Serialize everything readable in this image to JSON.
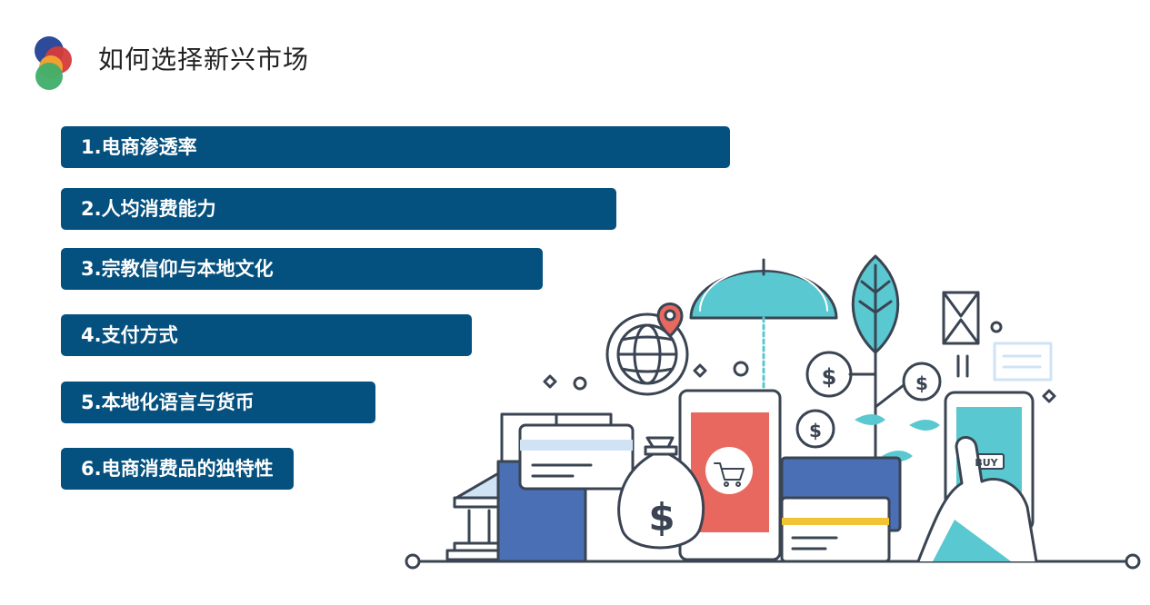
{
  "header": {
    "title": "如何选择新兴市场"
  },
  "items": [
    {
      "label": "1.电商渗透率"
    },
    {
      "label": "2.人均消费能力"
    },
    {
      "label": "3.宗教信仰与本地文化"
    },
    {
      "label": "4.支付方式"
    },
    {
      "label": "5.本地化语言与货币"
    },
    {
      "label": "6.电商消费品的独特性"
    }
  ],
  "illustration": {
    "phone_button": "BUY",
    "currency_symbol": "$",
    "icons": [
      "globe-icon",
      "map-pin-icon",
      "umbrella-icon",
      "leaf-icon",
      "envelope-icon",
      "money-bag-icon",
      "shopping-cart-icon",
      "bank-icon",
      "credit-card-icon",
      "smartphone-icon",
      "hand-icon",
      "dollar-coin-icon"
    ]
  },
  "colors": {
    "bar": "#04507e",
    "teal": "#5ac8d0",
    "red": "#e8685f",
    "blue": "#4a6fb5",
    "outline": "#3a4452"
  }
}
